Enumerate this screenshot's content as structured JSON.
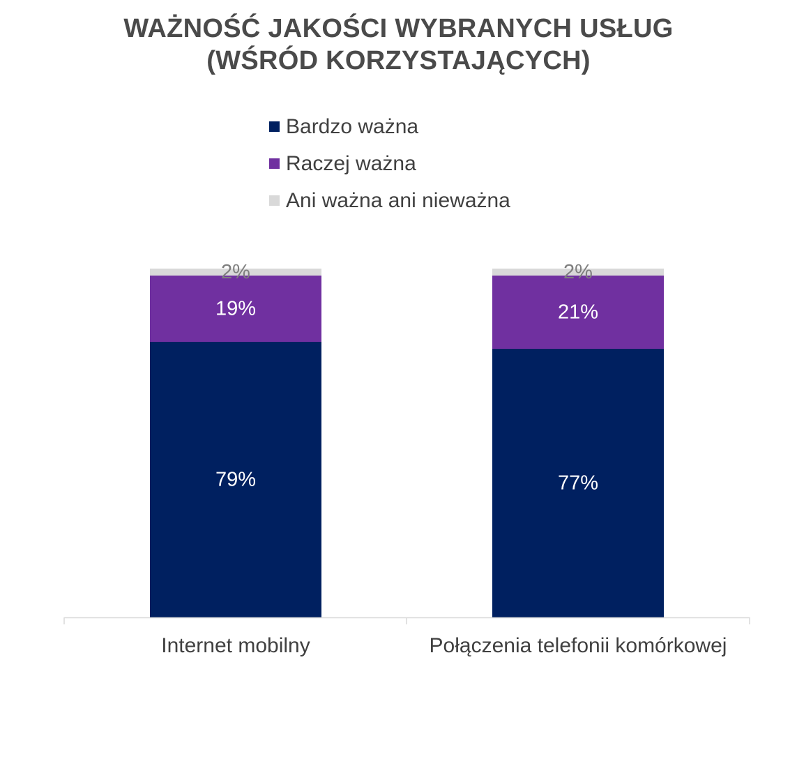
{
  "title": {
    "line1": "WAŻNOŚĆ JAKOŚCI WYBRANYCH USŁUG",
    "line2": "(WŚRÓD KORZYSTAJĄCYCH)"
  },
  "colors": {
    "bardzo": "#002060",
    "raczej": "#7030A0",
    "ani": "#D9D9D9",
    "label_light": "#ffffff",
    "label_grey": "#7f7f7f",
    "axis": "#d9d9d9",
    "text": "#404040"
  },
  "chart_data": {
    "type": "bar",
    "stacked": true,
    "categories": [
      "Internet mobilny",
      "Połączenia telefonii komórkowej"
    ],
    "series": [
      {
        "name": "Bardzo ważna",
        "values": [
          79,
          77
        ],
        "labels": [
          "79%",
          "77%"
        ]
      },
      {
        "name": "Raczej ważna",
        "values": [
          19,
          21
        ],
        "labels": [
          "19%",
          "21%"
        ]
      },
      {
        "name": "Ani ważna ani nieważna",
        "values": [
          2,
          2
        ],
        "labels": [
          "2%",
          "2%"
        ]
      }
    ],
    "ylim": [
      0,
      100
    ],
    "legend_position": "top",
    "grid": false
  }
}
